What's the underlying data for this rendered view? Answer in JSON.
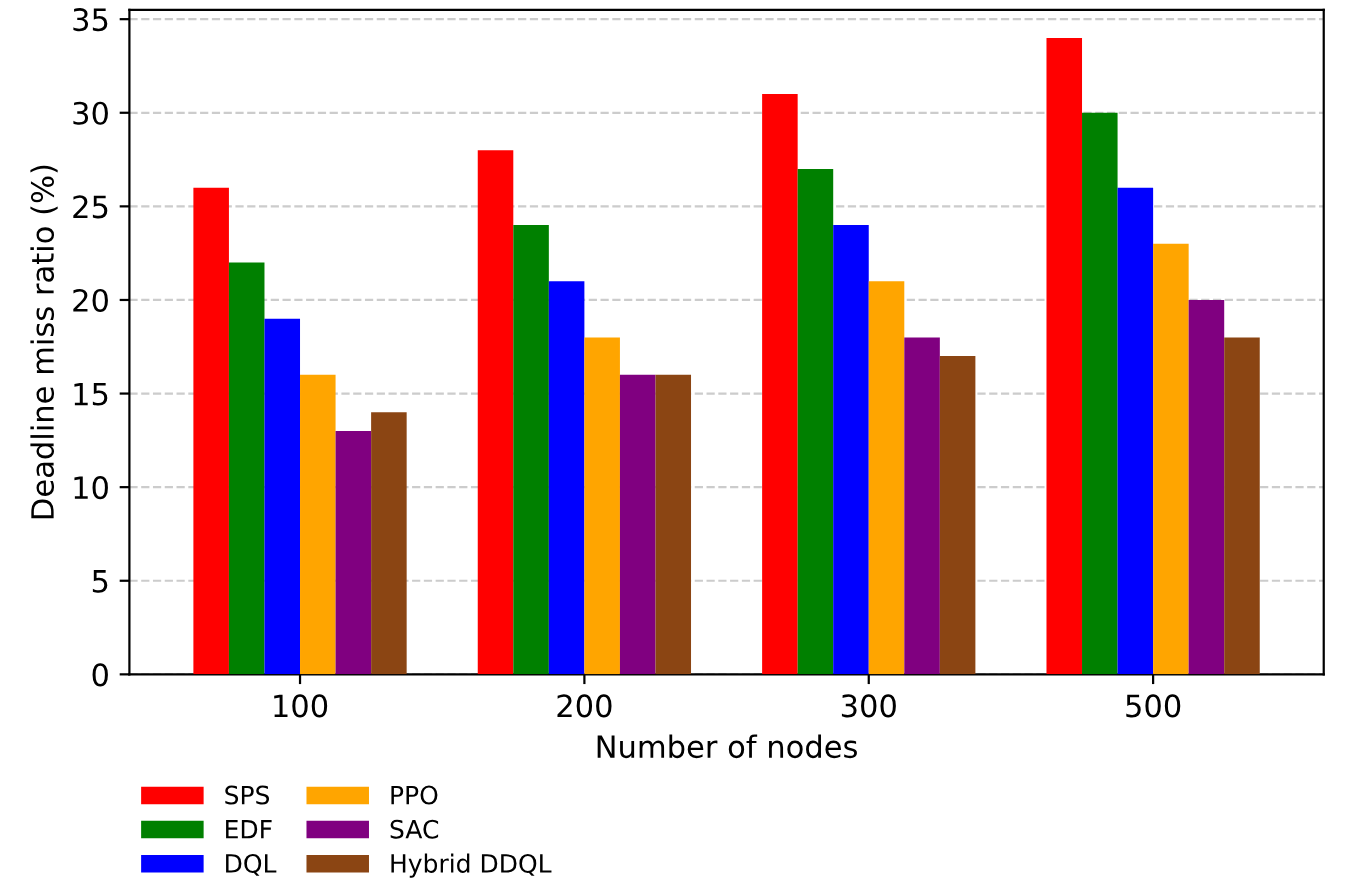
{
  "chart_data": {
    "type": "bar",
    "xlabel": "Number of nodes",
    "ylabel": "Deadline miss ratio (%)",
    "categories": [
      "100",
      "200",
      "300",
      "500"
    ],
    "series": [
      {
        "name": "SPS",
        "color": "#ff0000",
        "values": [
          26,
          28,
          31,
          34
        ]
      },
      {
        "name": "EDF",
        "color": "#008000",
        "values": [
          22,
          24,
          27,
          30
        ]
      },
      {
        "name": "DQL",
        "color": "#0000ff",
        "values": [
          19,
          21,
          24,
          26
        ]
      },
      {
        "name": "PPO",
        "color": "#ffa500",
        "values": [
          16,
          18,
          21,
          23
        ]
      },
      {
        "name": "SAC",
        "color": "#800080",
        "values": [
          13,
          16,
          18,
          20
        ]
      },
      {
        "name": "Hybrid DDQL",
        "color": "#8b4513",
        "values": [
          14,
          16,
          17,
          18
        ]
      }
    ],
    "ylim": [
      0,
      35.5
    ],
    "yticks": [
      0,
      5,
      10,
      15,
      20,
      25,
      30,
      35
    ],
    "grid": "y",
    "legend": "bottom"
  }
}
